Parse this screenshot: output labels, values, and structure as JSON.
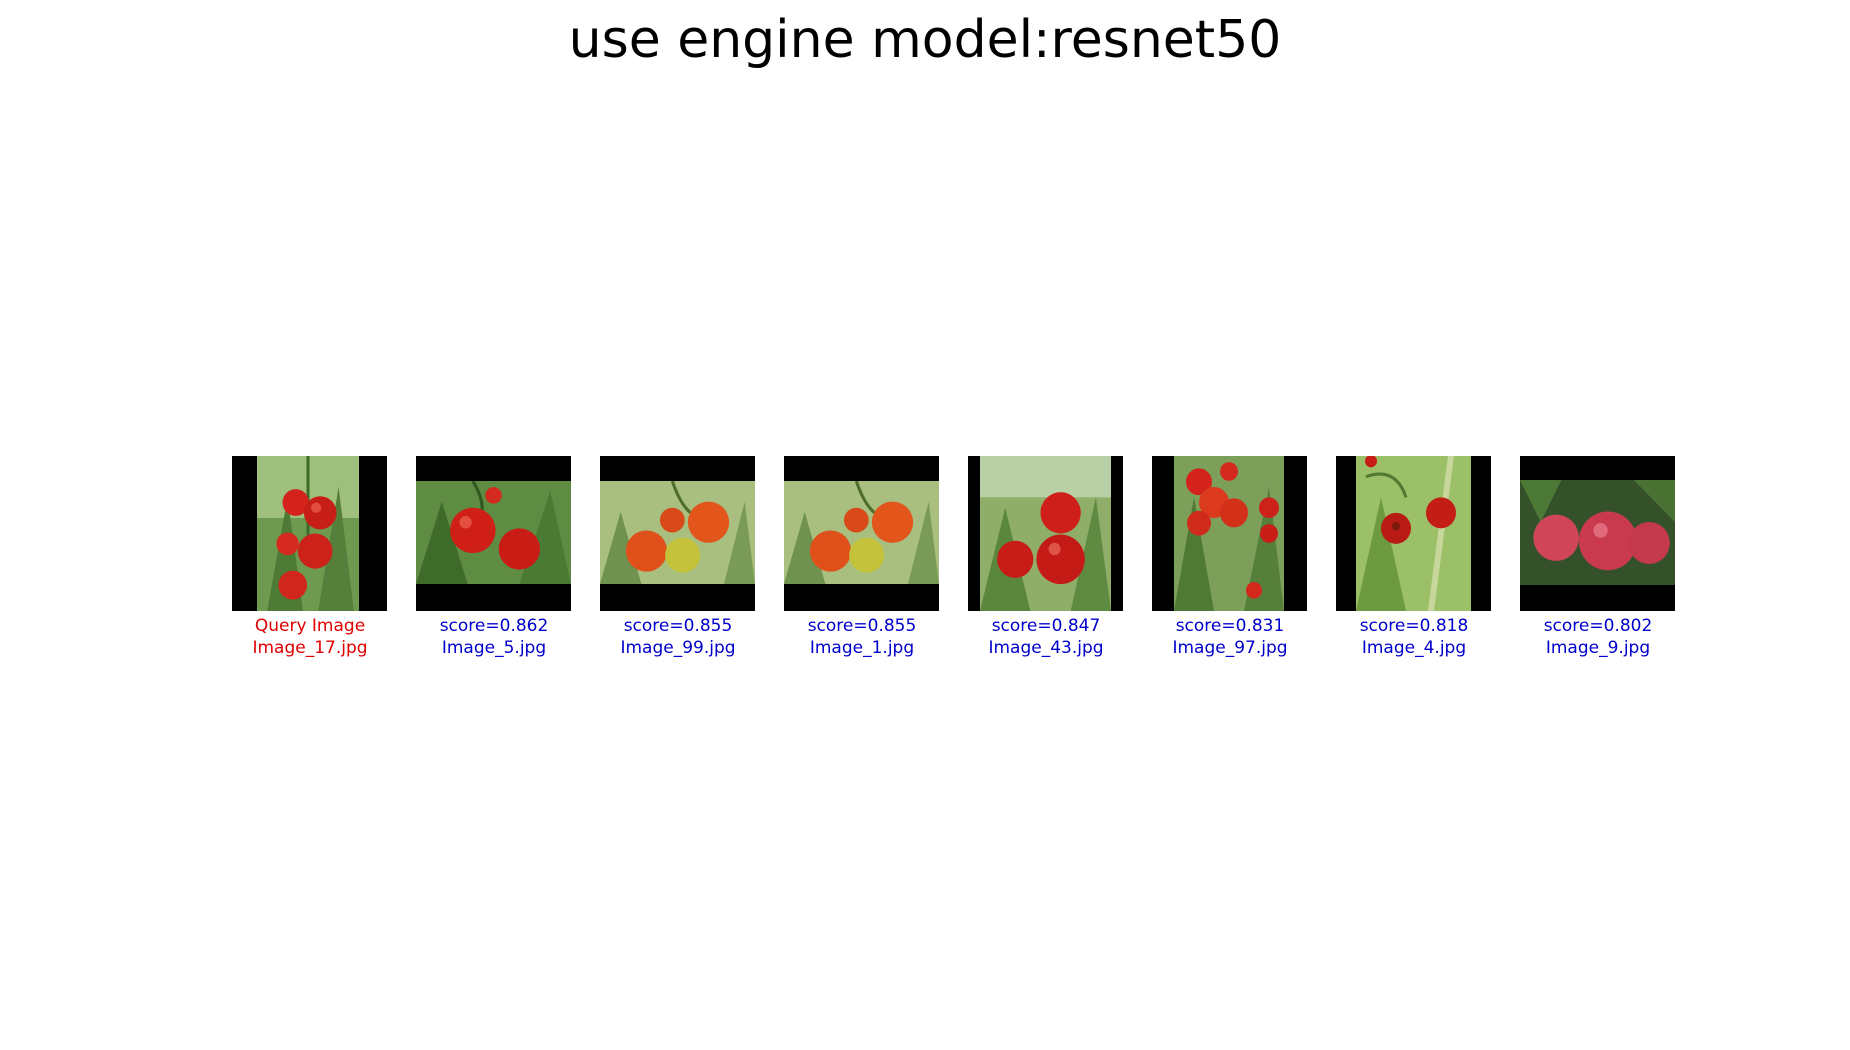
{
  "title": "use engine model:resnet50",
  "colors": {
    "query": "#e00000",
    "result": "#0000cc"
  },
  "query": {
    "line1": "Query Image",
    "line2": "Image_17.jpg"
  },
  "results": [
    {
      "score": "score=0.862",
      "file": "Image_5.jpg"
    },
    {
      "score": "score=0.855",
      "file": "Image_99.jpg"
    },
    {
      "score": "score=0.855",
      "file": "Image_1.jpg"
    },
    {
      "score": "score=0.847",
      "file": "Image_43.jpg"
    },
    {
      "score": "score=0.831",
      "file": "Image_97.jpg"
    },
    {
      "score": "score=0.818",
      "file": "Image_4.jpg"
    },
    {
      "score": "score=0.802",
      "file": "Image_9.jpg"
    }
  ]
}
